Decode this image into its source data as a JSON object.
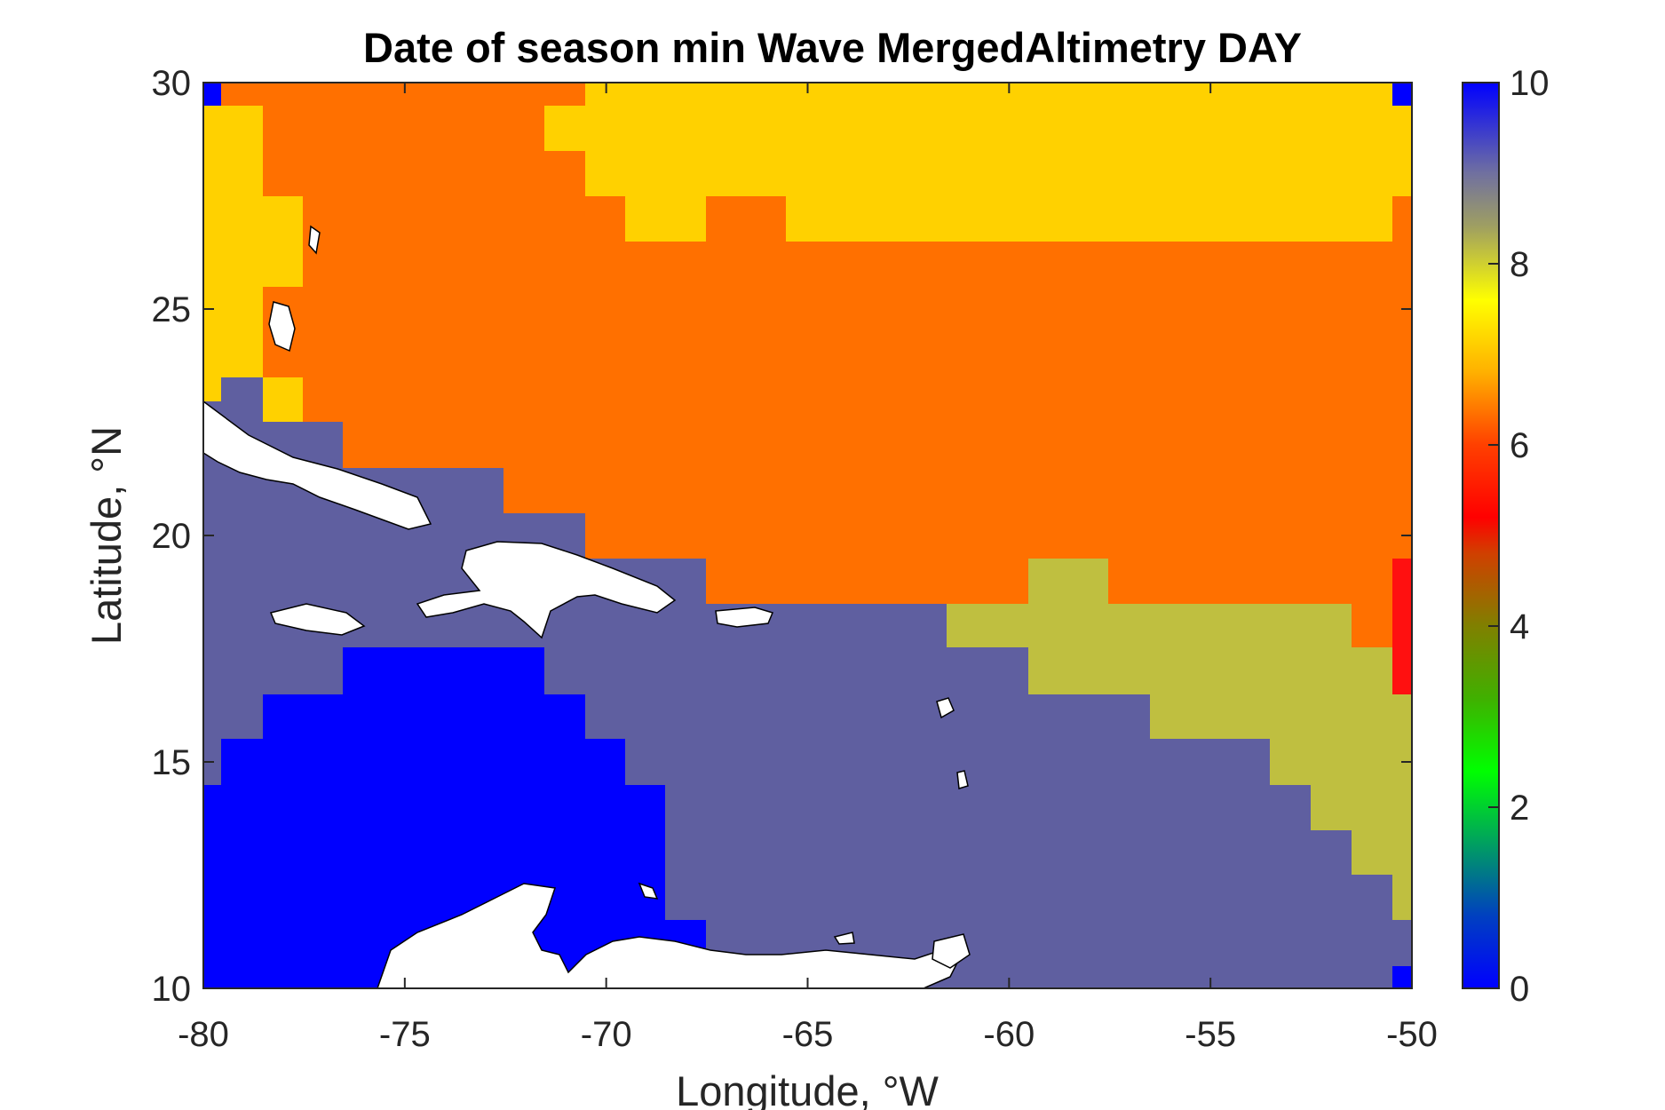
{
  "chart_data": {
    "type": "heatmap",
    "title": "Date of season min Wave MergedAltimetry DAY",
    "xlabel": "Longitude, °W",
    "ylabel": "Latitude, °N",
    "xlim": [
      -80,
      -50
    ],
    "ylim": [
      10,
      30
    ],
    "x_ticks": [
      -80,
      -75,
      -70,
      -65,
      -60,
      -55,
      -50
    ],
    "y_ticks": [
      10,
      15,
      20,
      25,
      30
    ],
    "colorbar": {
      "range": [
        0,
        10
      ],
      "ticks": [
        0,
        2,
        4,
        6,
        8,
        10
      ],
      "colormap": "jet-like (blue-green-yellow-orange-red-grey-blue)"
    },
    "grid": false,
    "regions": [
      {
        "value": 6.5,
        "color": "#FF7000",
        "description": "orange band across north and central Atlantic"
      },
      {
        "value": 7.0,
        "color": "#FFD100",
        "description": "yellow north-east block and NW corner"
      },
      {
        "value": 9.0,
        "color": "#5F5FA0",
        "description": "slate Caribbean sea"
      },
      {
        "value": 10.0,
        "color": "#0000FF",
        "description": "blue SW Caribbean and corner cells"
      },
      {
        "value": 7.8,
        "color": "#BFBF40",
        "description": "olive SE region"
      },
      {
        "value": 5.0,
        "color": "#FF1010",
        "description": "red east edge cells"
      }
    ]
  },
  "labels": {
    "title": "Date of season min Wave MergedAltimetry DAY",
    "xlabel": "Longitude, °W",
    "ylabel": "Latitude, °N"
  }
}
